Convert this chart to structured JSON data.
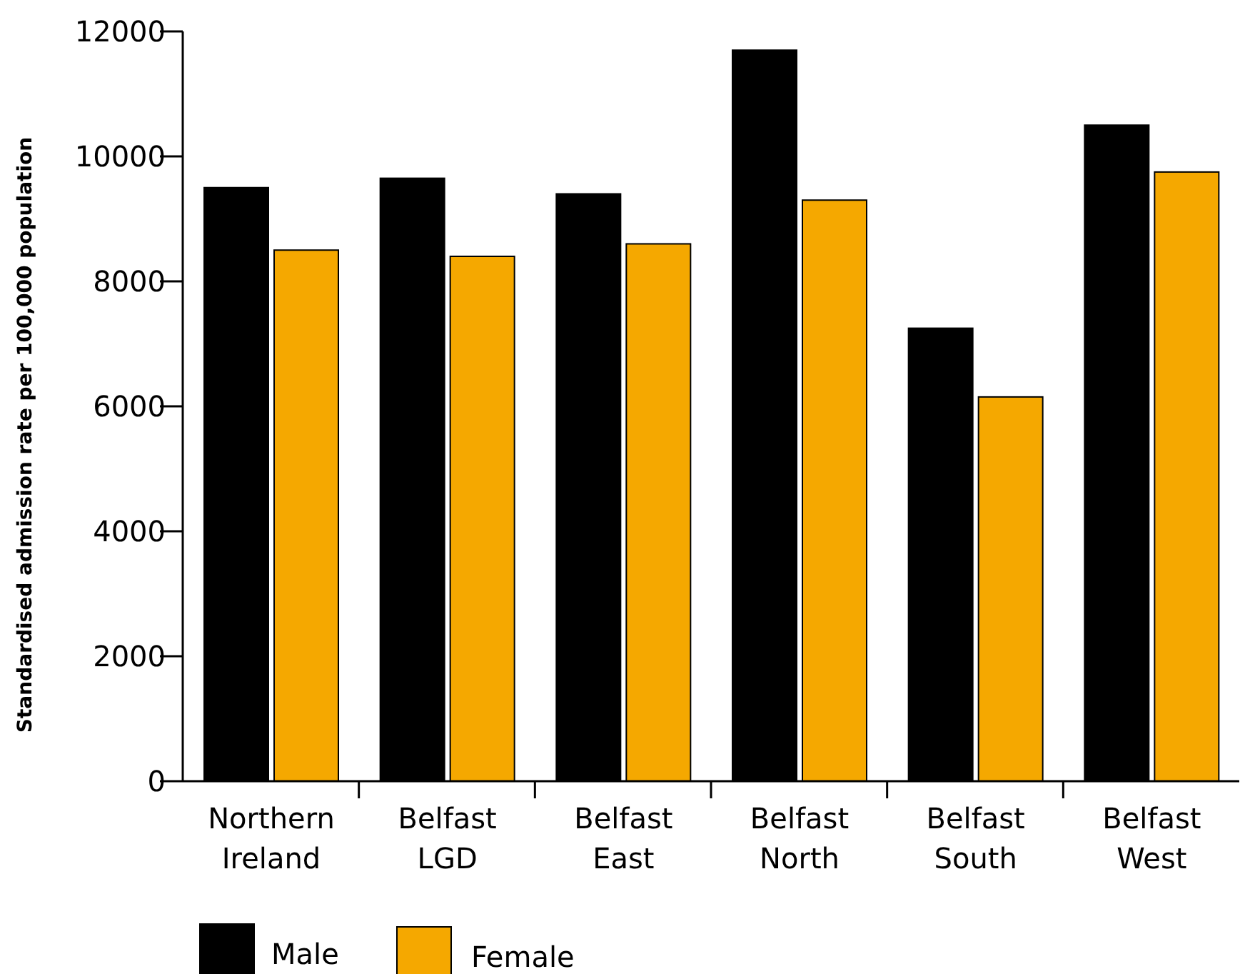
{
  "chart_data": {
    "type": "bar",
    "ylabel": "Standardised admission rate per 100,000 population",
    "categories": [
      "Northern Ireland",
      "Belfast LGD",
      "Belfast East",
      "Belfast North",
      "Belfast South",
      "Belfast West"
    ],
    "series": [
      {
        "name": "Male",
        "color": "#000000",
        "values": [
          9500,
          9650,
          9400,
          11700,
          7250,
          10500
        ]
      },
      {
        "name": "Female",
        "color": "#f5a800",
        "values": [
          8500,
          8400,
          8600,
          9300,
          6150,
          9750
        ]
      }
    ],
    "ylim": [
      0,
      12000
    ],
    "yticks": [
      0,
      2000,
      4000,
      6000,
      8000,
      10000,
      12000
    ],
    "grid": false,
    "legend": "bottom"
  }
}
